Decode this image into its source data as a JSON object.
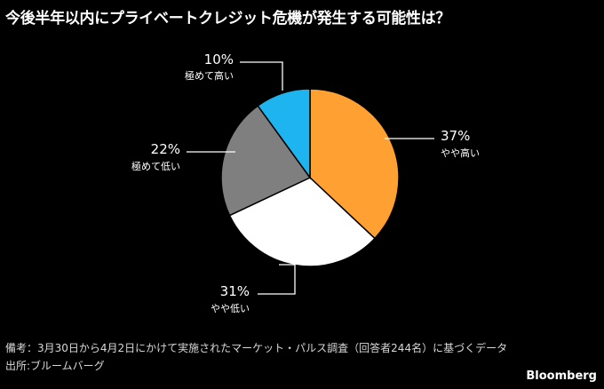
{
  "title": "今後半年以内にプライベートクレジット危機が発生する可能性は？",
  "footer": {
    "note": "備考：3月30日から4月2日にかけて実施されたマーケット・パルス調査（回答者244名）に基づくデータ",
    "source": "出所:ブルームバーグ",
    "brand": "Bloomberg"
  },
  "chart_data": {
    "type": "pie",
    "title": "今後半年以内にプライベートクレジット危機が発生する可能性は？",
    "slices": [
      {
        "label": "やや高い",
        "value": 37,
        "value_label": "37%",
        "color": "#FFA032"
      },
      {
        "label": "やや低い",
        "value": 31,
        "value_label": "31%",
        "color": "#FFFFFF"
      },
      {
        "label": "極めて低い",
        "value": 22,
        "value_label": "22%",
        "color": "#7F7F7F"
      },
      {
        "label": "極めて高い",
        "value": 10,
        "value_label": "10%",
        "color": "#1EB4F0"
      }
    ],
    "start": "12 o'clock",
    "direction": "clockwise"
  }
}
